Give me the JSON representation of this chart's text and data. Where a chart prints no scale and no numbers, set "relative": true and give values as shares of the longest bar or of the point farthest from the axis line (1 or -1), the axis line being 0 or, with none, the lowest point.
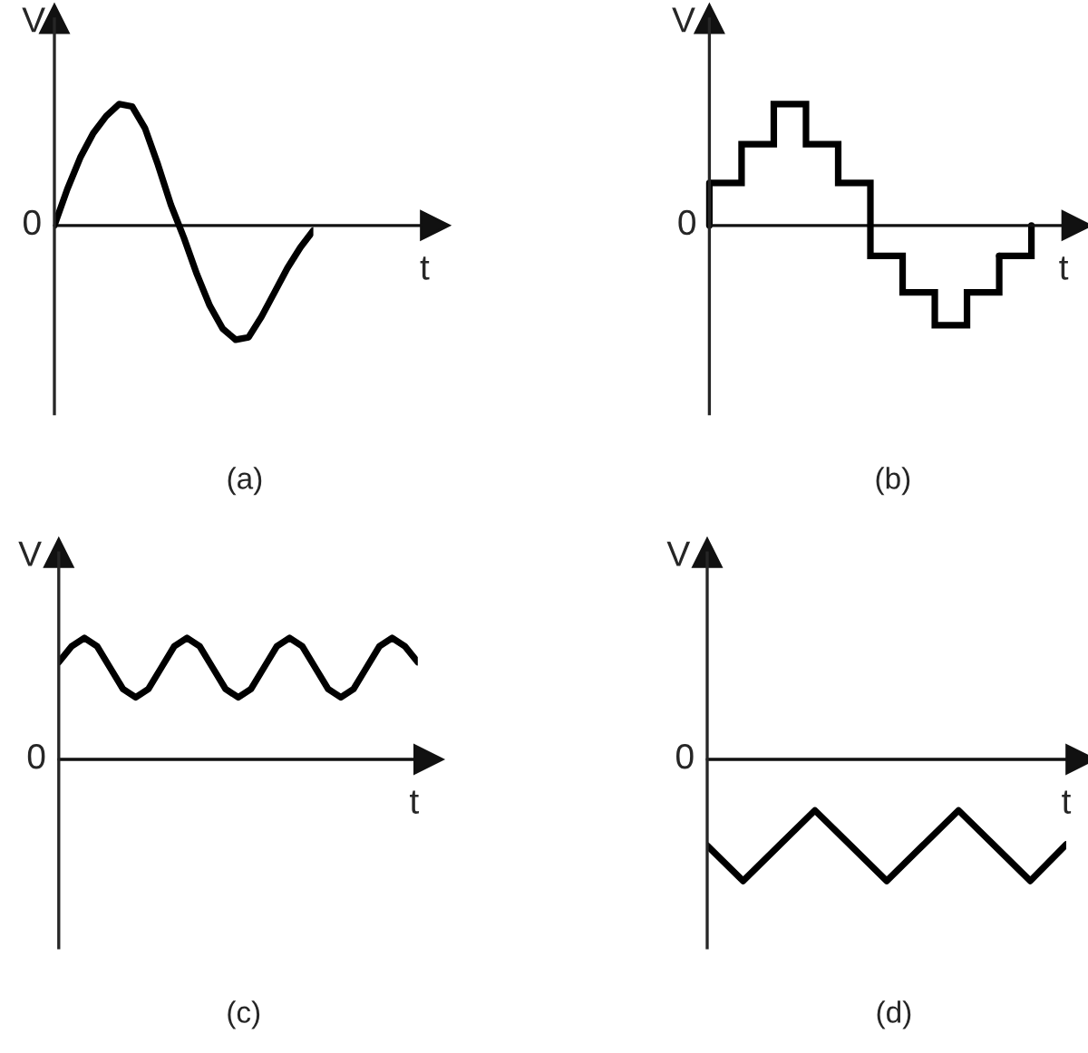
{
  "chart_data": [
    {
      "type": "line",
      "title": "(a)",
      "xlabel": "t",
      "ylabel": "V",
      "relative": true,
      "color": "#000000",
      "annotations": [
        "0"
      ],
      "categories": [
        null,
        null,
        null,
        null,
        null,
        null,
        null,
        null,
        null,
        null,
        null,
        null,
        null,
        null,
        null,
        null,
        null,
        null,
        null,
        null,
        null
      ],
      "values": [
        0,
        0.3,
        0.56,
        0.76,
        0.9,
        1,
        0.98,
        0.8,
        0.5,
        0.17,
        -0.1,
        -0.4,
        -0.66,
        -0.85,
        -0.94,
        -0.92,
        -0.75,
        -0.55,
        -0.35,
        -0.18,
        -0.04
      ]
    },
    {
      "type": "step",
      "title": "(b)",
      "xlabel": "t",
      "ylabel": "V",
      "relative": true,
      "color": "#000000",
      "annotations": [
        "0"
      ],
      "categories": [
        null,
        null,
        null,
        null,
        null,
        null,
        null,
        null,
        null,
        null
      ],
      "values": [
        0.35,
        0.67,
        1,
        0.67,
        0.35,
        -0.25,
        -0.55,
        -0.82,
        -0.55,
        -0.25
      ]
    },
    {
      "type": "line",
      "title": "(c)",
      "xlabel": "t",
      "ylabel": "V",
      "relative": true,
      "color": "#000000",
      "annotations": [
        "0"
      ],
      "categories": [
        null,
        null,
        null,
        null,
        null,
        null,
        null,
        null,
        null,
        null,
        null,
        null,
        null,
        null,
        null,
        null,
        null,
        null,
        null,
        null,
        null,
        null,
        null,
        null,
        null,
        null,
        null,
        null,
        null
      ],
      "values": [
        0.8,
        0.93,
        1,
        0.93,
        0.755,
        0.58,
        0.51,
        0.58,
        0.755,
        0.93,
        1,
        0.93,
        0.755,
        0.58,
        0.51,
        0.58,
        0.755,
        0.93,
        1,
        0.93,
        0.755,
        0.58,
        0.51,
        0.58,
        0.755,
        0.93,
        1,
        0.93,
        0.8
      ]
    },
    {
      "type": "line",
      "title": "(d)",
      "xlabel": "t",
      "ylabel": "V",
      "relative": true,
      "color": "#000000",
      "annotations": [
        "0"
      ],
      "categories": [
        null,
        null,
        null,
        null,
        null,
        null,
        null,
        null,
        null,
        null,
        null
      ],
      "values": [
        -0.71,
        -1,
        -0.71,
        -0.42,
        -0.71,
        -1,
        -0.71,
        -0.42,
        -0.71,
        -1,
        -0.7
      ]
    }
  ]
}
